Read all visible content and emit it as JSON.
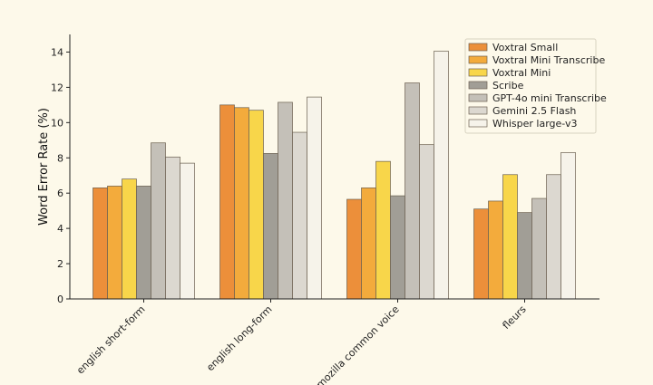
{
  "chart_data": {
    "type": "bar",
    "title": "",
    "xlabel": "",
    "ylabel": "Word Error Rate (%)",
    "ylim": [
      0,
      15
    ],
    "yticks": [
      0,
      2,
      4,
      6,
      8,
      10,
      12,
      14
    ],
    "categories": [
      "english short-form",
      "english long-form",
      "mozilla common voice",
      "fleurs"
    ],
    "legend_position": "top-right",
    "grid": false,
    "series": [
      {
        "name": "Voxtral Small",
        "color": "#ec8f3a",
        "values": [
          6.3,
          11.0,
          5.65,
          5.1
        ]
      },
      {
        "name": "Voxtral Mini Transcribe",
        "color": "#f3ab3c",
        "values": [
          6.4,
          10.85,
          6.3,
          5.55
        ]
      },
      {
        "name": "Voxtral Mini",
        "color": "#f8d64a",
        "values": [
          6.8,
          10.7,
          7.8,
          7.05
        ]
      },
      {
        "name": "Scribe",
        "color": "#a19e96",
        "values": [
          6.4,
          8.25,
          5.85,
          4.9
        ]
      },
      {
        "name": "GPT-4o mini Transcribe",
        "color": "#c4c0b8",
        "values": [
          8.85,
          11.15,
          12.25,
          5.7
        ]
      },
      {
        "name": "Gemini 2.5 Flash",
        "color": "#dcd8d0",
        "values": [
          8.05,
          9.45,
          8.75,
          7.05
        ]
      },
      {
        "name": "Whisper large-v3",
        "color": "#f6f3ea",
        "values": [
          7.7,
          11.45,
          14.05,
          8.3
        ]
      }
    ]
  }
}
